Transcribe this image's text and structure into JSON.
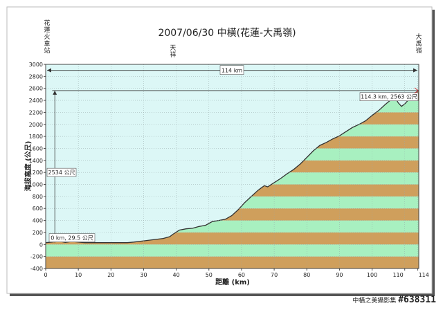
{
  "watermark": {
    "text": "中橫之美攝影集",
    "code": "#638311"
  },
  "colors": {
    "sky": "#dcf7f6",
    "band_green": "#a8f0c0",
    "band_brown": "#cf9f5c",
    "line": "#333333",
    "frame_shadow": "#444444"
  },
  "chart_data": {
    "type": "area",
    "title": "2007/06/30  中橫(花蓮-大禹嶺)",
    "xlabel": "距離 (km)",
    "ylabel": "海拔高度 (公尺)",
    "xlim": [
      0,
      114.3
    ],
    "ylim": [
      -400,
      3000
    ],
    "xticks": [
      0,
      10,
      20,
      30,
      40,
      50,
      60,
      70,
      80,
      90,
      100,
      110,
      114
    ],
    "yticks": [
      -400,
      -200,
      0,
      200,
      400,
      600,
      800,
      1000,
      1200,
      1400,
      1600,
      1800,
      2000,
      2200,
      2400,
      2600,
      2800,
      3000
    ],
    "places": [
      {
        "name": "花蓮火車站",
        "x": 0
      },
      {
        "name": "天祥",
        "x": 39
      },
      {
        "name": "大禹嶺",
        "x": 114.3
      }
    ],
    "annotations": {
      "distance": "114 km",
      "climb": "2534 公尺",
      "start": "0 km, 29.5 公尺",
      "end": "114.3 km, 2563 公尺"
    },
    "series": [
      {
        "x": [
          0,
          2,
          4,
          6,
          8,
          10,
          12,
          14,
          18,
          22,
          25,
          27,
          30,
          33,
          36,
          38,
          39,
          41,
          43,
          45,
          47,
          49,
          51,
          53,
          55,
          57,
          59,
          61,
          63,
          65,
          66,
          67,
          68,
          70,
          72,
          74,
          76,
          78,
          80,
          82,
          84,
          86,
          88,
          90,
          92,
          94,
          96,
          98,
          100,
          102,
          104,
          106,
          107,
          108,
          109,
          110,
          111,
          112,
          113,
          114.3
        ],
        "y": [
          29.5,
          40,
          55,
          35,
          50,
          40,
          30,
          30,
          30,
          30,
          30,
          40,
          60,
          80,
          100,
          130,
          170,
          240,
          260,
          270,
          300,
          320,
          380,
          400,
          420,
          480,
          580,
          700,
          800,
          900,
          940,
          980,
          960,
          1030,
          1100,
          1180,
          1250,
          1340,
          1450,
          1560,
          1650,
          1700,
          1760,
          1810,
          1880,
          1950,
          2000,
          2060,
          2150,
          2230,
          2330,
          2420,
          2450,
          2360,
          2300,
          2340,
          2400,
          2450,
          2520,
          2563
        ]
      }
    ]
  }
}
